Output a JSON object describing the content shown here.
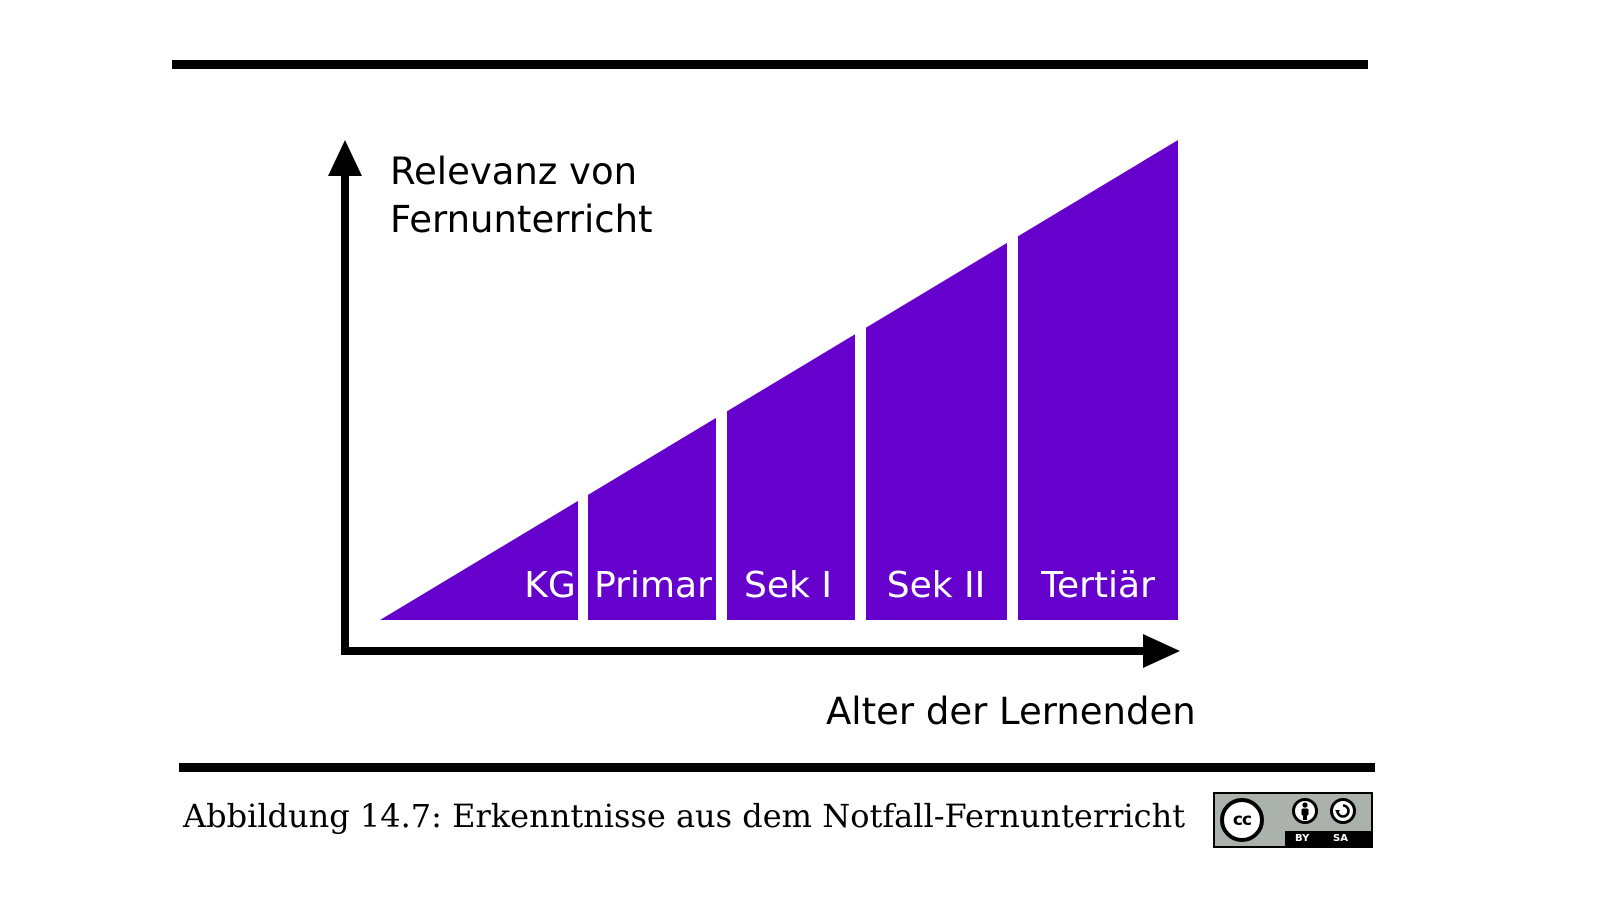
{
  "diagram": {
    "y_axis_label": [
      "Relevanz von",
      "Fernunterricht"
    ],
    "x_axis_label": "Alter der Lernenden",
    "fill_color": "#6600cc",
    "segments": [
      {
        "label": "KG"
      },
      {
        "label": "Primar"
      },
      {
        "label": "Sek I"
      },
      {
        "label": "Sek II"
      },
      {
        "label": "Tertiär"
      }
    ]
  },
  "caption": "Abbildung 14.7: Erkenntnisse aus dem Notfall-Fernunterricht",
  "license": {
    "cc": "cc",
    "icons": [
      "cc-icon",
      "person-icon",
      "share-alike-icon"
    ],
    "by": "BY",
    "sa": "SA"
  }
}
